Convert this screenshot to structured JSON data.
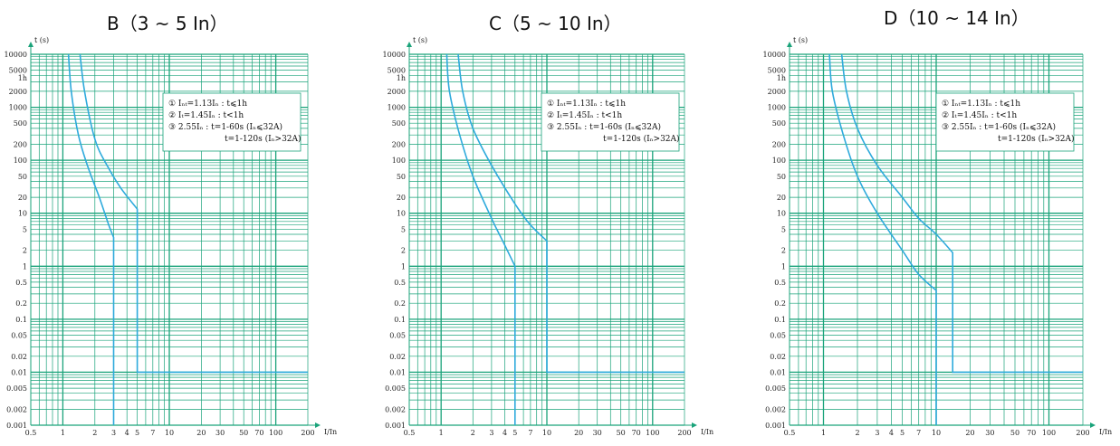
{
  "colors": {
    "grid": "#1aa37a",
    "curve": "#2eaadc"
  },
  "axes": {
    "y_label": "t (s)",
    "x_label": "I/In",
    "y_ticks": [
      "10000",
      "5000",
      "1h",
      "2000",
      "1000",
      "500",
      "200",
      "100",
      "50",
      "20",
      "10",
      "5",
      "2",
      "1",
      "0.5",
      "0.2",
      "0.1",
      "0.05",
      "0.02",
      "0.01",
      "0.005",
      "0.002",
      "0.001"
    ],
    "x_ticks": [
      "0.5",
      "1",
      "2",
      "3",
      "4",
      "5",
      "7",
      "10",
      "20",
      "30",
      "50",
      "70",
      "100",
      "200"
    ]
  },
  "legend_lines": [
    "①  Iₙₜ=1.13Iₙ : t⩽1h",
    "②  Iₜ=1.45Iₙ : t<1h",
    "③  2.55Iₙ : t=1-60s (Iₙ⩽32A)",
    "t=1-120s (Iₙ>32A)"
  ],
  "chart_data": [
    {
      "type": "line",
      "title": "B（3 ~ 5 In）",
      "xlabel": "I/In",
      "ylabel": "t (s)",
      "x_scale": "log",
      "y_scale": "log",
      "xlim": [
        0.5,
        200
      ],
      "ylim": [
        0.001,
        10000
      ],
      "grid": true,
      "series": [
        {
          "points": [
            [
              1.13,
              10000
            ],
            [
              1.2,
              2000
            ],
            [
              1.4,
              300
            ],
            [
              1.7,
              80
            ],
            [
              2.2,
              20
            ],
            [
              2.7,
              6
            ],
            [
              3,
              3.5
            ],
            [
              3,
              0.001
            ]
          ]
        },
        {
          "points": [
            [
              1.45,
              10000
            ],
            [
              1.6,
              2000
            ],
            [
              2,
              250
            ],
            [
              2.6,
              80
            ],
            [
              3.5,
              30
            ],
            [
              5,
              12
            ],
            [
              5,
              0.01
            ],
            [
              200,
              0.01
            ]
          ]
        }
      ]
    },
    {
      "type": "line",
      "title": "C（5 ~ 10 In）",
      "xlabel": "I/In",
      "ylabel": "t (s)",
      "x_scale": "log",
      "y_scale": "log",
      "xlim": [
        0.5,
        200
      ],
      "ylim": [
        0.001,
        10000
      ],
      "grid": true,
      "series": [
        {
          "points": [
            [
              1.13,
              10000
            ],
            [
              1.2,
              2000
            ],
            [
              1.5,
              300
            ],
            [
              2,
              50
            ],
            [
              3,
              8
            ],
            [
              4,
              2.5
            ],
            [
              5,
              1
            ],
            [
              5,
              0.001
            ]
          ]
        },
        {
          "points": [
            [
              1.45,
              10000
            ],
            [
              1.6,
              2000
            ],
            [
              2,
              400
            ],
            [
              3,
              80
            ],
            [
              5,
              15
            ],
            [
              7,
              6
            ],
            [
              10,
              3
            ],
            [
              10,
              0.01
            ],
            [
              200,
              0.01
            ]
          ]
        }
      ]
    },
    {
      "type": "line",
      "title": "D（10 ~ 14 In）",
      "xlabel": "I/In",
      "ylabel": "t (s)",
      "x_scale": "log",
      "y_scale": "log",
      "xlim": [
        0.5,
        200
      ],
      "ylim": [
        0.001,
        10000
      ],
      "grid": true,
      "series": [
        {
          "points": [
            [
              1.13,
              10000
            ],
            [
              1.2,
              2000
            ],
            [
              1.5,
              300
            ],
            [
              2,
              50
            ],
            [
              3,
              10
            ],
            [
              5,
              2
            ],
            [
              7,
              0.7
            ],
            [
              10,
              0.35
            ],
            [
              10,
              0.001
            ]
          ]
        },
        {
          "points": [
            [
              1.45,
              10000
            ],
            [
              1.6,
              2000
            ],
            [
              2,
              400
            ],
            [
              3,
              80
            ],
            [
              5,
              20
            ],
            [
              7,
              8
            ],
            [
              10,
              4
            ],
            [
              14,
              1.8
            ],
            [
              14,
              0.01
            ],
            [
              200,
              0.01
            ]
          ]
        }
      ]
    }
  ]
}
